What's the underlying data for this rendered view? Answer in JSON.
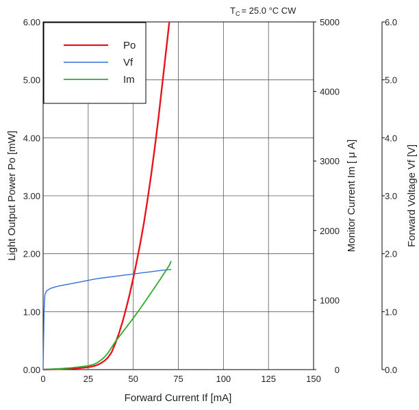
{
  "chart_data": {
    "type": "line",
    "condition_text": "= 25.0 °C  CW",
    "condition_symbol": "T",
    "condition_subscript": "C",
    "xlabel": "Forward  Current  If  [mA]",
    "ylabel_left": "Light  Output  Power   Po  [mW]",
    "ylabel_right1": "Monitor  Current   Im  [ μ A]",
    "ylabel_right2": "Forward  Voltage   Vf  [V]",
    "xlim": [
      0,
      150
    ],
    "ylim_left": [
      0,
      6
    ],
    "ylim_right1": [
      0,
      5000
    ],
    "ylim_right2": [
      0,
      6
    ],
    "x_ticks": [
      "0",
      "25",
      "50",
      "75",
      "100",
      "125",
      "150"
    ],
    "y_left_ticks": [
      "0.00",
      "1.00",
      "2.00",
      "3.00",
      "4.00",
      "5.00",
      "6.00"
    ],
    "y_right1_ticks": [
      "0",
      "1000",
      "2000",
      "3000",
      "4000",
      "5000"
    ],
    "y_right2_ticks": [
      "0.0",
      "1.0",
      "2.0",
      "3.0",
      "4.0",
      "5.0",
      "6.0"
    ],
    "grid": true,
    "legend_position": "top-left",
    "series": [
      {
        "name": "Po",
        "color": "#e8141c",
        "axis": "left",
        "x": [
          0,
          5,
          10,
          15,
          20,
          25,
          28,
          30,
          32,
          34,
          36,
          38,
          40,
          42,
          44,
          46,
          48,
          50,
          52,
          54,
          56,
          58,
          60,
          62,
          64,
          66,
          68,
          70
        ],
        "y": [
          0,
          0.005,
          0.01,
          0.015,
          0.025,
          0.04,
          0.06,
          0.08,
          0.11,
          0.15,
          0.21,
          0.3,
          0.45,
          0.62,
          0.82,
          1.05,
          1.3,
          1.58,
          1.88,
          2.2,
          2.55,
          2.95,
          3.38,
          3.85,
          4.35,
          4.9,
          5.45,
          6.0
        ]
      },
      {
        "name": "Vf",
        "color": "#2f6fd6",
        "axis": "right2",
        "x": [
          0,
          0.5,
          1,
          2,
          4,
          7,
          10,
          15,
          20,
          25,
          30,
          35,
          40,
          45,
          50,
          55,
          60,
          65,
          71
        ],
        "y": [
          0,
          1.0,
          1.3,
          1.36,
          1.4,
          1.43,
          1.45,
          1.48,
          1.51,
          1.54,
          1.57,
          1.59,
          1.61,
          1.63,
          1.65,
          1.67,
          1.69,
          1.71,
          1.73
        ]
      },
      {
        "name": "Im",
        "color": "#2da82d",
        "axis": "right1",
        "x": [
          0,
          5,
          10,
          15,
          20,
          25,
          28,
          30,
          32,
          34,
          36,
          38,
          40,
          45,
          50,
          55,
          60,
          65,
          70,
          71
        ],
        "y": [
          0,
          8,
          15,
          25,
          38,
          55,
          75,
          100,
          135,
          180,
          240,
          320,
          400,
          570,
          740,
          920,
          1110,
          1300,
          1500,
          1560
        ]
      }
    ]
  },
  "icons": {
    "legend_swatch": "line-swatch"
  }
}
